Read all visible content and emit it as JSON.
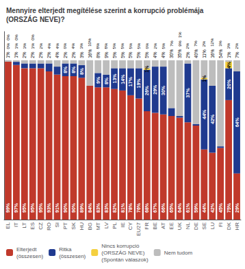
{
  "chart_data": {
    "type": "bar",
    "title": "Mennyire elterjedt megítélése szerint a korrupció problémája (ORSZÁG NEVE)?",
    "categories": [
      "EL",
      "IT",
      "LT",
      "ES",
      "CZ",
      "RO",
      "SI",
      "PT",
      "SK",
      "HU",
      "BG",
      "MT",
      "LV",
      "PL",
      "IE",
      "CY",
      "EU27",
      "FR",
      "BE",
      "AT",
      "EE",
      "UK",
      "NL",
      "DE",
      "SE",
      "LU",
      "FI",
      "DK",
      "HR"
    ],
    "stacked": true,
    "data_labels": true,
    "grid": false,
    "legend": "lower left",
    "tick_labels": "x",
    "ylim": [
      0,
      118
    ],
    "yticks": [],
    "series": [
      {
        "name": "Elterjedt\n(összesen)",
        "color": "#C0392B",
        "values": [
          99,
          97,
          95,
          95,
          95,
          93,
          91,
          90,
          90,
          89,
          84,
          83,
          83,
          82,
          81,
          78,
          76,
          68,
          67,
          66,
          65,
          64,
          61,
          59,
          44,
          42,
          45,
          75,
          29
        ],
        "value_labels": [
          "99%",
          "97%",
          "95%",
          "95%",
          "95%",
          "93%",
          "91%",
          "90%",
          "90%",
          "89%",
          "84%",
          "83%",
          "83%",
          "82%",
          "81%",
          "78%",
          "76%",
          "68%",
          "67%",
          "66%",
          "65%",
          "64%",
          "61%",
          "59%",
          "44%",
          "42%",
          "45%",
          "75%",
          "29%"
        ]
      },
      {
        "name": "Ritka\n(összesen)",
        "color": "#1F3A8F",
        "values": [
          0,
          2,
          3,
          3,
          3,
          5,
          5,
          8,
          8,
          8,
          0,
          9,
          8,
          13,
          14,
          17,
          19,
          26,
          29,
          30,
          5,
          1,
          37,
          1,
          44,
          42,
          1,
          20,
          64
        ],
        "value_labels": [
          null,
          null,
          null,
          null,
          null,
          null,
          null,
          "8%",
          "8%",
          "8%",
          null,
          "9%",
          "8%",
          "13%",
          "14%",
          "17%",
          "19%",
          "26%",
          "29%",
          "30%",
          null,
          null,
          "37%",
          null,
          "44%",
          "42%",
          null,
          "20%",
          "64%"
        ]
      },
      {
        "name": "Nincs korrupció\n(ORSZÁG NEVE)\n(Spontán válaszok)",
        "color": "#F4D03F",
        "values": [
          0,
          0,
          0,
          0,
          0,
          0,
          0,
          0,
          0,
          0,
          0,
          0,
          0,
          0,
          0,
          0,
          0,
          1,
          0,
          0,
          0,
          0,
          0,
          0,
          1,
          0,
          0,
          4,
          0
        ],
        "value_labels": [
          null,
          null,
          null,
          null,
          null,
          null,
          null,
          null,
          null,
          null,
          null,
          null,
          null,
          null,
          null,
          null,
          null,
          "1%",
          null,
          null,
          null,
          null,
          null,
          null,
          "1%",
          null,
          null,
          "4%",
          null
        ]
      },
      {
        "name": "Nem tudom",
        "color": "#BDBDBD",
        "values": [
          1,
          1,
          2,
          2,
          2,
          2,
          4,
          2,
          2,
          3,
          16,
          8,
          9,
          5,
          5,
          5,
          5,
          5,
          4,
          4,
          30,
          35,
          2,
          40,
          11,
          16,
          54,
          1,
          7
        ],
        "value_labels": [
          "1%",
          "1%",
          "2%",
          "2%",
          "2%",
          "2%",
          "4%",
          "2%",
          "2%",
          "3%",
          "16%",
          "8%",
          "9%",
          "5%",
          "5%",
          "5%",
          "5%",
          "5%",
          "4%",
          "4%",
          "30%",
          "35%",
          "2%",
          "40%",
          "11%",
          "16%",
          "54%",
          "1%",
          "7%"
        ]
      }
    ],
    "annotations": [
      {
        "category": "EL",
        "text": "0%"
      },
      {
        "category": "IT",
        "text": "1%"
      },
      {
        "category": "LT",
        "text": "3%"
      },
      {
        "category": "ES",
        "text": "1%"
      },
      {
        "category": "CZ",
        "text": "2%"
      },
      {
        "category": "RO",
        "text": "4%"
      },
      {
        "category": "SI",
        "text": "4%"
      },
      {
        "category": "PT",
        "text": "6%"
      },
      {
        "category": "SK",
        "text": "4%"
      },
      {
        "category": "HU",
        "text": "3%"
      },
      {
        "category": "BG",
        "text": "10%"
      },
      {
        "category": "MT",
        "text": "8%"
      },
      {
        "category": "LV",
        "text": "8%"
      },
      {
        "category": "PL",
        "text": "5%"
      },
      {
        "category": "IE",
        "text": "5%"
      },
      {
        "category": "CY",
        "text": "5%"
      },
      {
        "category": "EU27",
        "text": "5%"
      },
      {
        "category": "FR",
        "text": "6%"
      },
      {
        "category": "BE",
        "text": "2%"
      },
      {
        "category": "AT",
        "text": "5%"
      },
      {
        "category": "EE",
        "text": "7%"
      },
      {
        "category": "UK",
        "text": "9%"
      },
      {
        "category": "NL",
        "text": "2%"
      },
      {
        "category": "DE",
        "text": "7%"
      },
      {
        "category": "SE",
        "text": "2%"
      },
      {
        "category": "LU",
        "text": "12%"
      },
      {
        "category": "FI",
        "text": "3%"
      },
      {
        "category": "DK",
        "text": "3%"
      },
      {
        "category": "HR",
        "text": "2%"
      },
      {
        "category": "EL",
        "text": "0%"
      },
      {
        "category": "IT",
        "text": "0%"
      },
      {
        "category": "ES",
        "text": "0%"
      },
      {
        "category": "UK",
        "text": "1%"
      }
    ]
  }
}
